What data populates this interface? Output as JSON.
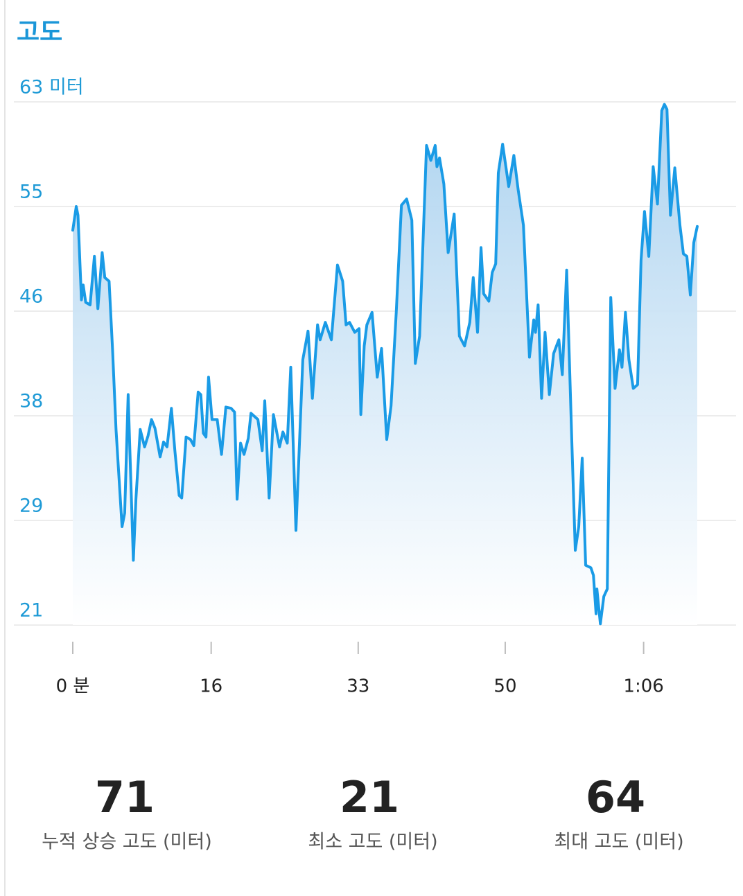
{
  "chart_data": {
    "type": "line",
    "title": "고도",
    "x": [
      0,
      0.4,
      0.6,
      1.0,
      1.2,
      1.5,
      2.0,
      2.5,
      2.9,
      3.4,
      3.7,
      4.2,
      4.6,
      5.0,
      5.4,
      5.7,
      6.0,
      6.4,
      6.6,
      7.0,
      7.3,
      7.8,
      8.3,
      8.7,
      9.1,
      9.5,
      10.1,
      10.5,
      10.9,
      11.4,
      11.8,
      12.3,
      12.6,
      13.1,
      13.6,
      14.0,
      14.5,
      14.8,
      15.1,
      15.4,
      15.7,
      16.1,
      16.7,
      17.2,
      17.7,
      18.3,
      18.7,
      19.0,
      19.4,
      19.8,
      20.3,
      20.6,
      21.4,
      21.9,
      22.2,
      22.7,
      23.2,
      23.9,
      24.3,
      24.8,
      25.2,
      25.8,
      26.6,
      27.2,
      27.7,
      28.3,
      28.6,
      29.2,
      29.9,
      30.6,
      31.2,
      31.6,
      32.0,
      32.6,
      33.1,
      33.3,
      33.7,
      34.0,
      34.6,
      35.2,
      35.7,
      36.3,
      36.8,
      37.4,
      38.0,
      38.6,
      39.2,
      39.6,
      40.1,
      40.9,
      41.4,
      41.9,
      42.1,
      42.4,
      42.9,
      43.4,
      44.1,
      44.7,
      45.3,
      45.9,
      46.3,
      46.8,
      47.2,
      47.5,
      48.1,
      48.5,
      48.9,
      49.2,
      49.7,
      50.4,
      51.0,
      51.5,
      52.1,
      52.8,
      53.3,
      53.5,
      53.8,
      54.2,
      54.6,
      55.1,
      55.6,
      56.2,
      56.6,
      57.1,
      57.7,
      58.1,
      58.5,
      58.9,
      59.3,
      59.9,
      60.2,
      60.5,
      60.6,
      61.0,
      61.4,
      61.8,
      62.2,
      62.7,
      63.2,
      63.5,
      63.9,
      64.3,
      64.8,
      65.3,
      65.7,
      66.1,
      66.6,
      67.1,
      67.6,
      68.1,
      68.4,
      68.7,
      69.1,
      69.6,
      70.2,
      70.6,
      71.0,
      71.4,
      71.8,
      72.2
    ],
    "series": [
      {
        "name": "고도",
        "color": "#1a9be6",
        "values": [
          52.7,
          54.6,
          53.9,
          47.1,
          48.3,
          46.9,
          46.7,
          50.6,
          46.4,
          50.9,
          48.9,
          48.6,
          43.1,
          36.7,
          32.2,
          28.9,
          30.0,
          39.5,
          35.0,
          26.2,
          31.1,
          36.7,
          35.3,
          36.2,
          37.5,
          36.8,
          34.5,
          35.7,
          35.3,
          38.4,
          35.0,
          31.4,
          31.2,
          36.1,
          35.9,
          35.4,
          39.7,
          39.5,
          36.4,
          36.1,
          40.9,
          37.5,
          37.5,
          34.7,
          38.5,
          38.4,
          38.1,
          31.1,
          35.6,
          34.7,
          36.0,
          38.0,
          37.5,
          35.0,
          39.0,
          31.2,
          37.9,
          35.3,
          36.5,
          35.6,
          41.7,
          28.6,
          42.3,
          44.6,
          39.2,
          45.1,
          43.9,
          45.3,
          43.9,
          49.9,
          48.6,
          45.1,
          45.3,
          44.5,
          44.8,
          37.9,
          43.4,
          45.1,
          46.1,
          40.9,
          43.2,
          35.9,
          38.6,
          46.1,
          54.7,
          55.2,
          53.5,
          42.0,
          44.2,
          59.5,
          58.3,
          59.5,
          57.8,
          58.5,
          56.4,
          50.9,
          54.0,
          44.2,
          43.4,
          45.3,
          48.9,
          44.5,
          51.3,
          47.6,
          47.0,
          49.3,
          50.0,
          57.3,
          59.6,
          56.2,
          58.7,
          55.9,
          53.1,
          42.5,
          45.5,
          44.5,
          46.7,
          39.2,
          44.5,
          39.5,
          42.8,
          43.9,
          41.1,
          49.5,
          35.6,
          27.0,
          28.9,
          34.4,
          25.8,
          25.6,
          25.0,
          21.9,
          23.9,
          21.1,
          23.3,
          23.9,
          47.3,
          40.0,
          43.1,
          41.7,
          46.1,
          42.3,
          40.0,
          40.3,
          50.3,
          54.2,
          50.6,
          57.8,
          54.8,
          62.3,
          62.8,
          62.4,
          53.9,
          57.7,
          53.1,
          50.8,
          50.6,
          47.5,
          51.7,
          53.0
        ]
      }
    ],
    "xlim": [
      0,
      72.2
    ],
    "xticks": [
      {
        "value": 0,
        "label": "0 분"
      },
      16,
      33,
      50,
      {
        "value": 66,
        "label": "1:06"
      }
    ],
    "ylim": [
      21,
      63
    ],
    "yticks": [
      21,
      {
        "value": 29.4,
        "label": "29"
      },
      {
        "value": 37.8,
        "label": "38"
      },
      {
        "value": 46.2,
        "label": "46"
      },
      {
        "value": 54.6,
        "label": "55"
      },
      {
        "value": 63,
        "label": "63 미터"
      }
    ],
    "grid": true
  },
  "stats": [
    {
      "value": "71",
      "label": "누적 상승 고도 (미터)"
    },
    {
      "value": "21",
      "label": "최소 고도 (미터)"
    },
    {
      "value": "64",
      "label": "최대 고도 (미터)"
    }
  ]
}
